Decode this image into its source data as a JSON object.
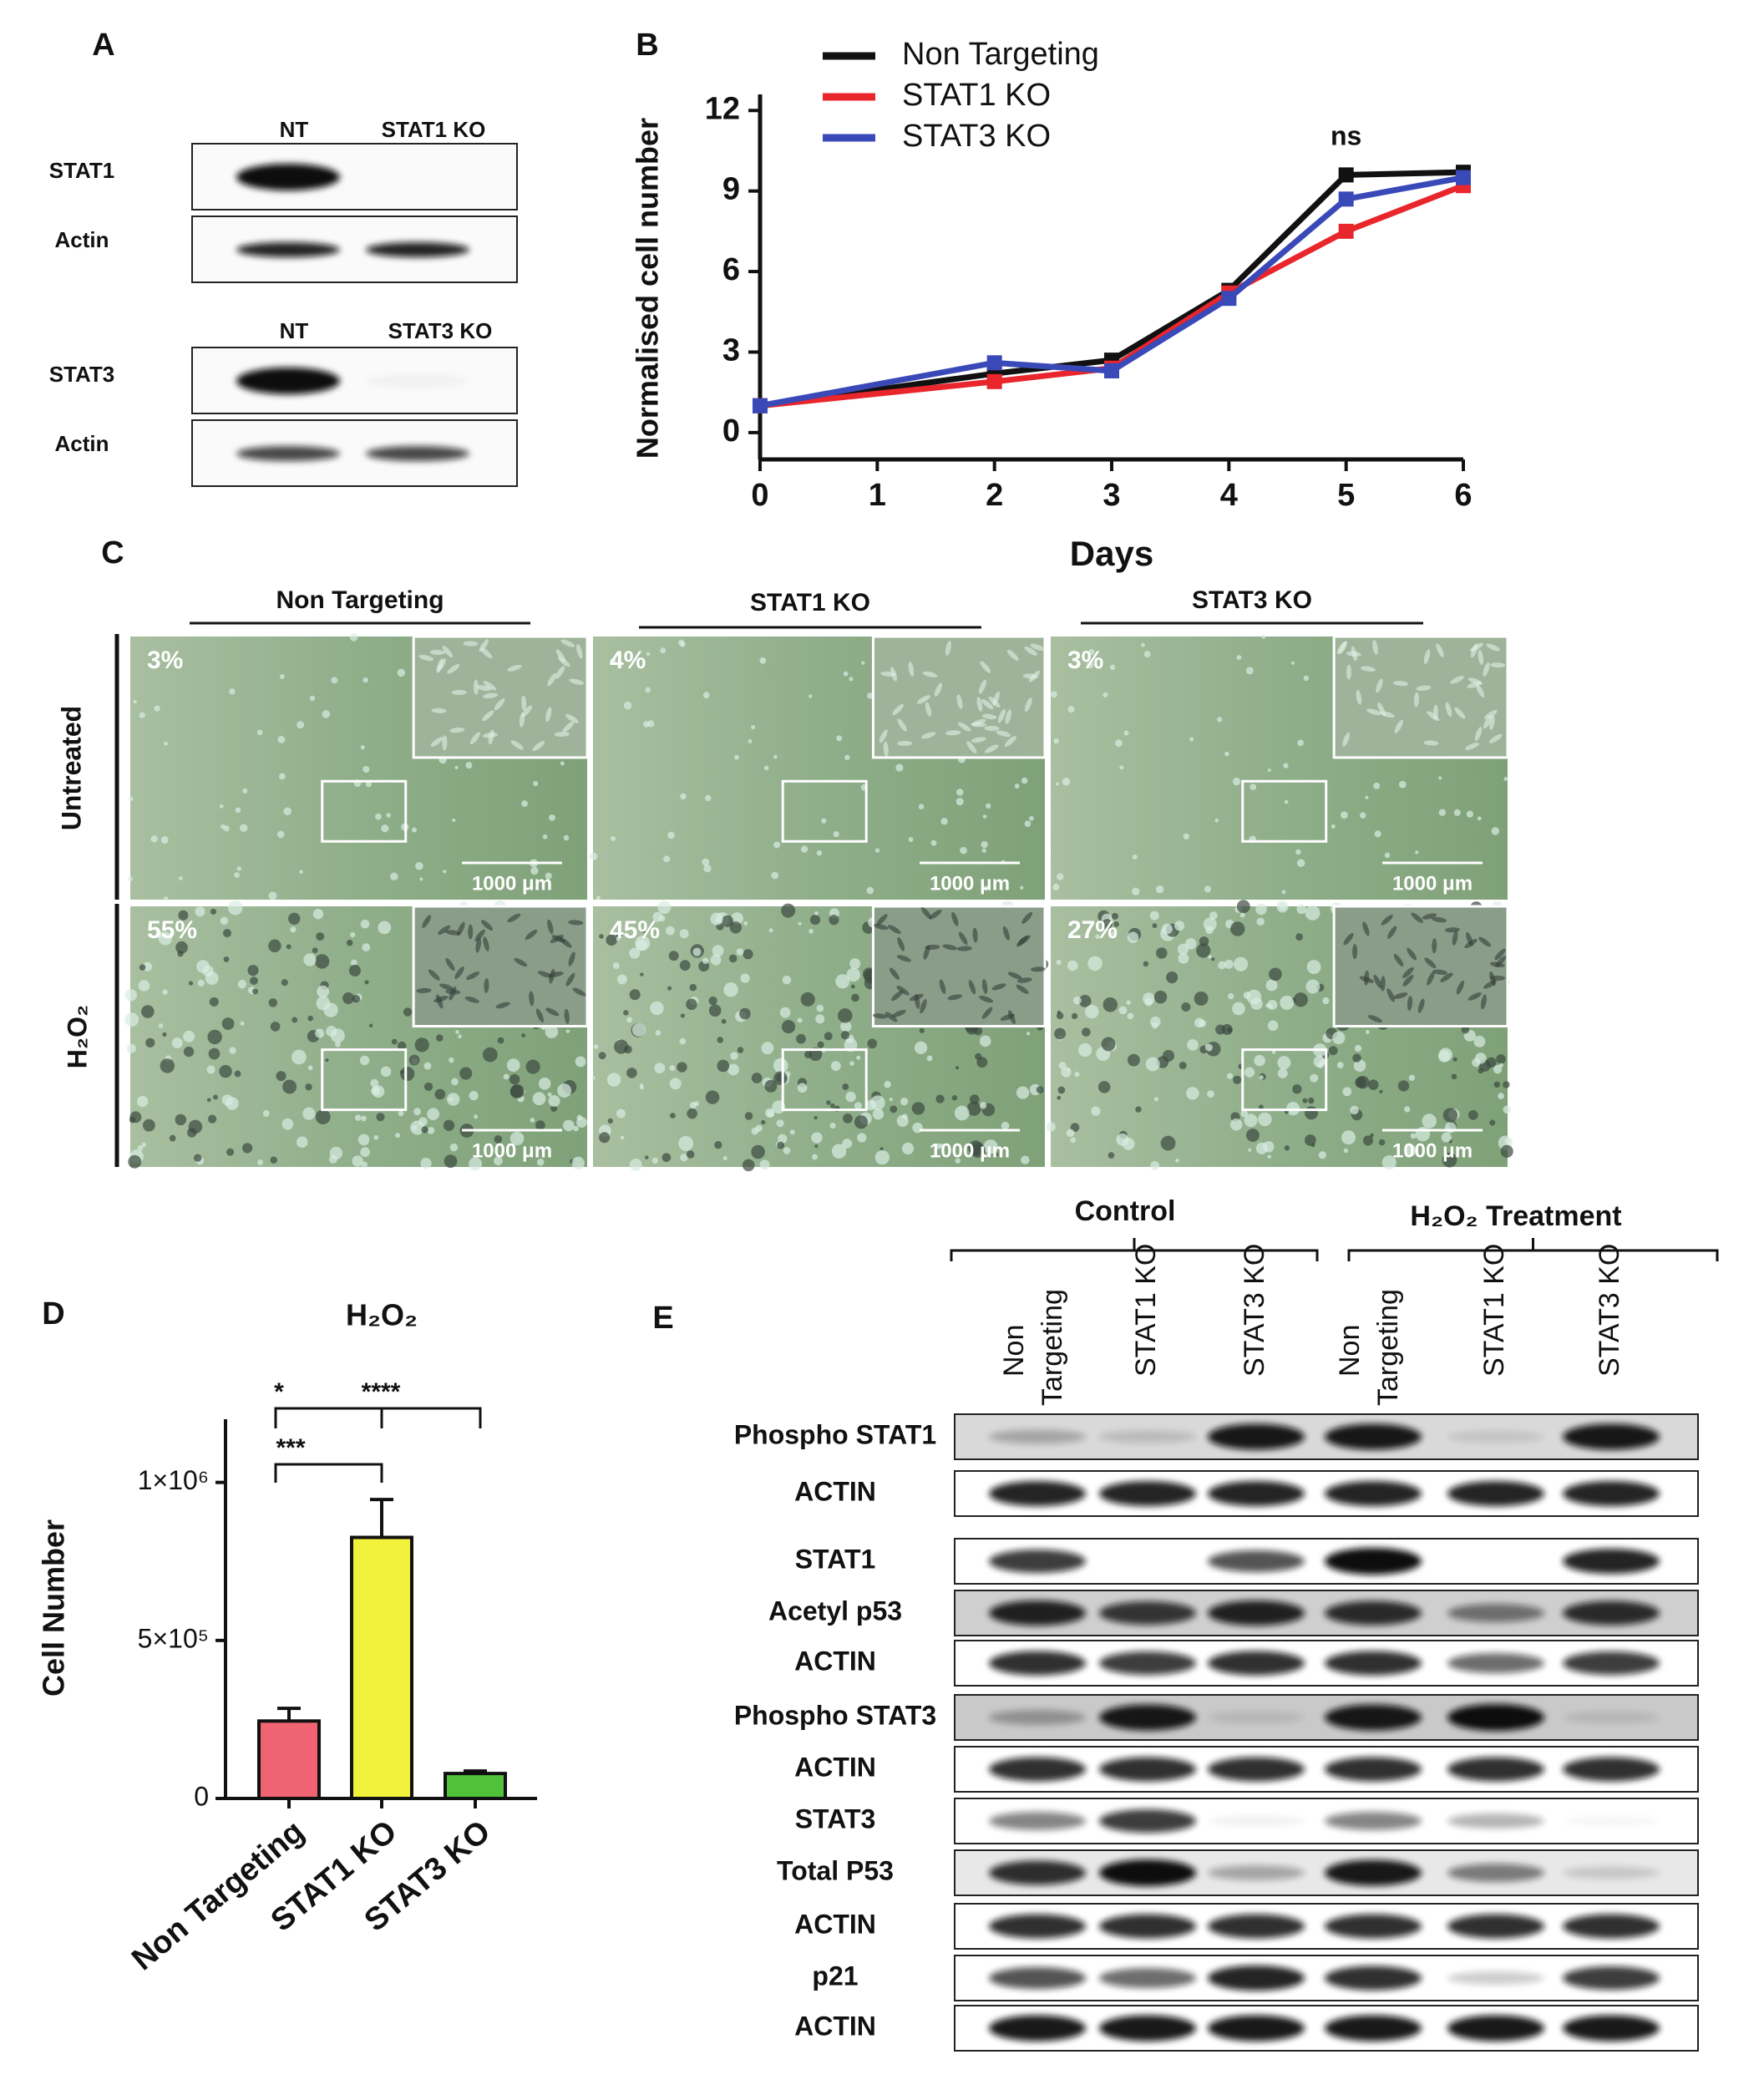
{
  "panel_labels": [
    "A",
    "B",
    "C",
    "D",
    "E"
  ],
  "panel_a": {
    "blots": [
      {
        "lanes": [
          "NT",
          "STAT1 KO"
        ],
        "rows": [
          "STAT1",
          "Actin"
        ]
      },
      {
        "lanes": [
          "NT",
          "STAT3 KO"
        ],
        "rows": [
          "STAT3",
          "Actin"
        ]
      }
    ]
  },
  "chart_data": [
    {
      "type": "line",
      "x_label": "Days",
      "y_label": "Normalised cell number",
      "x": [
        0,
        2,
        3,
        4,
        5,
        6
      ],
      "xlim": [
        0,
        6
      ],
      "xticks": [
        0,
        1,
        2,
        3,
        4,
        5,
        6
      ],
      "ylim": [
        -1,
        12.6
      ],
      "yticks": [
        0,
        3,
        6,
        9,
        12
      ],
      "annotation": "ns",
      "series": [
        {
          "name": "Non Targeting",
          "color": "#111111",
          "values": [
            1,
            2.2,
            2.7,
            5.3,
            9.6,
            9.7
          ]
        },
        {
          "name": "STAT1 KO",
          "color": "#e8262b",
          "values": [
            1,
            1.9,
            2.4,
            5.2,
            7.5,
            9.2
          ]
        },
        {
          "name": "STAT3 KO",
          "color": "#3a49b8",
          "values": [
            1,
            2.6,
            2.3,
            5.0,
            8.7,
            9.5
          ]
        }
      ]
    },
    {
      "type": "bar",
      "title": "H₂O₂",
      "y_label": "Cell Number",
      "categories": [
        "Non Targeting",
        "STAT1 KO",
        "STAT3 KO"
      ],
      "values": [
        245000,
        826000,
        79000
      ],
      "errors": [
        40000,
        120000,
        8000
      ],
      "colors": [
        "#f06373",
        "#f2f23c",
        "#4fc23a"
      ],
      "ylim": [
        0,
        1200000
      ],
      "yticks": [
        0,
        {
          "value": 500000,
          "label": "5×10⁵"
        },
        {
          "value": 1000000,
          "label": "1×10⁶"
        }
      ],
      "significance": [
        "*",
        "****",
        "***"
      ]
    }
  ],
  "panel_c": {
    "columns": [
      "Non Targeting",
      "STAT1 KO",
      "STAT3 KO"
    ],
    "rows": [
      {
        "label": "Untreated",
        "percents": [
          "3%",
          "4%",
          "3%"
        ]
      },
      {
        "label": "H₂O₂",
        "percents": [
          "55%",
          "45%",
          "27%"
        ]
      }
    ],
    "scale_bar": "1000 μm"
  },
  "panel_e": {
    "groups": [
      "Control",
      "H₂O₂ Treatment"
    ],
    "lanes": [
      [
        "Non",
        "Targeting"
      ],
      [
        "STAT1 KO"
      ],
      [
        "STAT3 KO"
      ],
      [
        "Non",
        "Targeting"
      ],
      [
        "STAT1 KO"
      ],
      [
        "STAT3 KO"
      ]
    ],
    "rows": [
      "Phospho STAT1",
      "ACTIN",
      "STAT1",
      "Acetyl  p53",
      "ACTIN",
      "Phospho STAT3",
      "ACTIN",
      "STAT3",
      "Total P53",
      "ACTIN",
      "p21",
      "ACTIN"
    ]
  }
}
